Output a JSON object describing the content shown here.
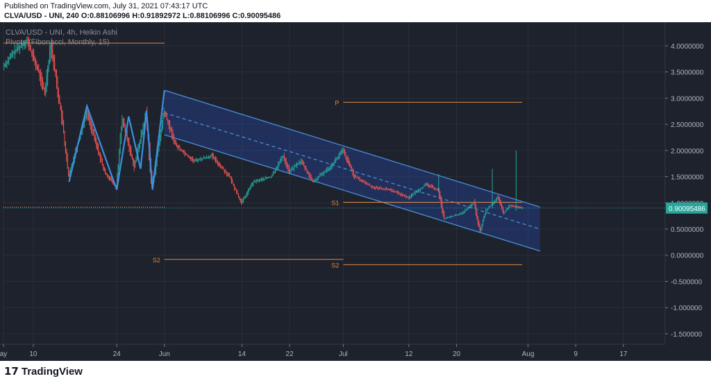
{
  "header": {
    "published": "Published on TradingView.com, July 31, 2021 07:43:17 UTC",
    "ohlc": "CLVA/USD - UNI, 240 O:0.88106996 H:0.91892972 L:0.88106996 C:0.90095486"
  },
  "legend": {
    "symbol": "CLVA/USD - UNI, 4h, Heikin Ashi",
    "indicator": "Pivots (Fibonacci, Monthly, 15)"
  },
  "footer": {
    "logo_glyph": "17",
    "logo_text": "TradingView"
  },
  "colors": {
    "background": "#1e222d",
    "grid": "#2a2e39",
    "up": "#26a69a",
    "down": "#ef5350",
    "pivot": "#e08a3c",
    "channel": "#2962ff",
    "channel_stroke": "#4a90d9",
    "zigzag": "#3d8fe0",
    "price_label": "#26a69a"
  },
  "chart_data": {
    "type": "candlestick",
    "style": "Heikin Ashi",
    "timeframe": "4h",
    "y_axis": {
      "range": [
        -1.7,
        4.45
      ],
      "ticks": [
        4.0,
        3.5,
        3.0,
        2.5,
        2.0,
        1.5,
        1.0,
        0.5,
        0.0,
        -0.5,
        -1.0,
        -1.5
      ],
      "tick_labels": [
        "4.0000000",
        "3.5000000",
        "3.0000000",
        "2.5000000",
        "2.0000000",
        "1.5000000",
        "1.0000000",
        "0.5000000",
        "0.0000000",
        "-0.500000",
        "-1.000000",
        "-1.500000"
      ]
    },
    "x_axis": {
      "range": [
        "2021-05-05",
        "2021-08-24"
      ],
      "ticks": [
        {
          "date": "2021-05-05",
          "label": "ay"
        },
        {
          "date": "2021-05-10",
          "label": "10"
        },
        {
          "date": "2021-05-24",
          "label": "24"
        },
        {
          "date": "2021-06-01",
          "label": "Jun"
        },
        {
          "date": "2021-06-14",
          "label": "14"
        },
        {
          "date": "2021-06-22",
          "label": "22"
        },
        {
          "date": "2021-07-01",
          "label": "Jul"
        },
        {
          "date": "2021-07-12",
          "label": "12"
        },
        {
          "date": "2021-07-20",
          "label": "20"
        },
        {
          "date": "2021-08-01",
          "label": "Aug"
        },
        {
          "date": "2021-08-09",
          "label": "9"
        },
        {
          "date": "2021-08-17",
          "label": "17"
        }
      ]
    },
    "grid": true,
    "last_price": {
      "value": 0.90095486,
      "label": "0.90095486"
    },
    "price_path": [
      [
        "2021-05-05",
        3.6
      ],
      [
        "2021-05-07",
        3.9
      ],
      [
        "2021-05-09",
        4.1
      ],
      [
        "2021-05-11",
        3.5
      ],
      [
        "2021-05-12",
        3.1
      ],
      [
        "2021-05-13",
        4.05
      ],
      [
        "2021-05-14",
        3.3
      ],
      [
        "2021-05-15",
        2.5
      ],
      [
        "2021-05-16",
        1.5
      ],
      [
        "2021-05-19",
        2.75
      ],
      [
        "2021-05-22",
        1.6
      ],
      [
        "2021-05-24",
        1.3
      ],
      [
        "2021-05-25",
        2.6
      ],
      [
        "2021-05-27",
        1.7
      ],
      [
        "2021-05-29",
        2.7
      ],
      [
        "2021-05-30",
        1.3
      ],
      [
        "2021-05-31",
        2.0
      ],
      [
        "2021-06-01",
        2.75
      ],
      [
        "2021-06-03",
        2.1
      ],
      [
        "2021-06-06",
        1.8
      ],
      [
        "2021-06-09",
        1.9
      ],
      [
        "2021-06-12",
        1.5
      ],
      [
        "2021-06-14",
        1.0
      ],
      [
        "2021-06-16",
        1.4
      ],
      [
        "2021-06-19",
        1.5
      ],
      [
        "2021-06-21",
        1.9
      ],
      [
        "2021-06-22",
        1.6
      ],
      [
        "2021-06-24",
        1.8
      ],
      [
        "2021-06-26",
        1.4
      ],
      [
        "2021-06-29",
        1.7
      ],
      [
        "2021-07-01",
        2.0
      ],
      [
        "2021-07-03",
        1.5
      ],
      [
        "2021-07-06",
        1.3
      ],
      [
        "2021-07-09",
        1.25
      ],
      [
        "2021-07-12",
        1.1
      ],
      [
        "2021-07-15",
        1.35
      ],
      [
        "2021-07-17",
        1.25
      ],
      [
        "2021-07-18",
        0.7
      ],
      [
        "2021-07-21",
        0.8
      ],
      [
        "2021-07-23",
        1.0
      ],
      [
        "2021-07-24",
        0.45
      ],
      [
        "2021-07-25",
        0.85
      ],
      [
        "2021-07-27",
        1.1
      ],
      [
        "2021-07-28",
        0.8
      ],
      [
        "2021-07-29",
        0.95
      ],
      [
        "2021-07-31",
        0.90095486
      ]
    ],
    "zigzag": [
      [
        "2021-05-16",
        1.4
      ],
      [
        "2021-05-19",
        2.85
      ],
      [
        "2021-05-24",
        1.25
      ],
      [
        "2021-05-26",
        2.65
      ],
      [
        "2021-05-28",
        1.65
      ],
      [
        "2021-05-29",
        2.75
      ],
      [
        "2021-05-30",
        1.25
      ],
      [
        "2021-06-01",
        3.15
      ]
    ],
    "channel": {
      "upper": [
        [
          "2021-06-01",
          3.15
        ],
        [
          "2021-08-03",
          0.92
        ]
      ],
      "middle": [
        [
          "2021-06-01",
          2.72
        ],
        [
          "2021-08-03",
          0.5
        ]
      ],
      "lower": [
        [
          "2021-06-01",
          2.3
        ],
        [
          "2021-08-03",
          0.08
        ]
      ]
    },
    "pivots": [
      {
        "label": "",
        "value": 4.05,
        "from": "2021-05-05",
        "to": "2021-06-01"
      },
      {
        "label": "",
        "value": 0.92,
        "from": "2021-05-05",
        "to": "2021-06-01",
        "dotted": true
      },
      {
        "label": "S2",
        "value": -0.08,
        "from": "2021-06-01",
        "to": "2021-07-01"
      },
      {
        "label": "P",
        "value": 2.92,
        "from": "2021-07-01",
        "to": "2021-07-31"
      },
      {
        "label": "S1",
        "value": 1.01,
        "from": "2021-07-01",
        "to": "2021-07-31"
      },
      {
        "label": "S2",
        "value": -0.18,
        "from": "2021-07-01",
        "to": "2021-07-31"
      }
    ],
    "spikes": [
      {
        "date": "2021-07-17",
        "high": 1.55,
        "low": 1.2
      },
      {
        "date": "2021-07-26",
        "high": 1.65,
        "low": 0.9
      },
      {
        "date": "2021-07-30",
        "high": 2.0,
        "low": 0.85
      }
    ]
  }
}
